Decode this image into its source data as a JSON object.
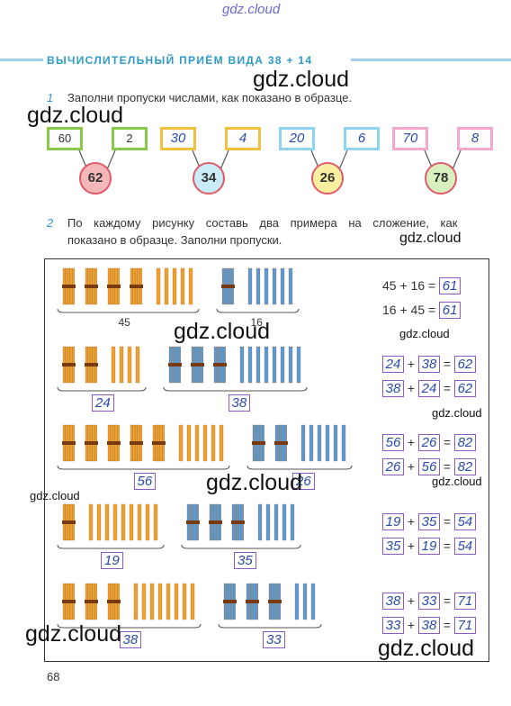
{
  "watermark": {
    "site": "gdz.cloud"
  },
  "header": {
    "title": "ВЫЧИСЛИТЕЛЬНЫЙ ПРИЁМ ВИДА 38 + 14"
  },
  "task1": {
    "number": "1",
    "text": "Заполни пропуски числами, как показано в образце.",
    "items": [
      {
        "left": "60",
        "right": "2",
        "sum": "62",
        "left_color": "#8ac84a",
        "right_color": "#8ac84a",
        "circle_color": "#f4b8b8"
      },
      {
        "left": "30",
        "right": "4",
        "sum": "34",
        "left_color": "#f0c040",
        "right_color": "#f0c040",
        "circle_color": "#c8ecf8"
      },
      {
        "left": "20",
        "right": "6",
        "sum": "26",
        "left_color": "#8fd4f0",
        "right_color": "#8fd4f0",
        "circle_color": "#f8f0a0"
      },
      {
        "left": "70",
        "right": "8",
        "sum": "78",
        "left_color": "#f4a8cc",
        "right_color": "#f4a8cc",
        "circle_color": "#d8f0c0"
      }
    ]
  },
  "task2": {
    "number": "2",
    "text_line1": "По каждому рисунку составь два примера на сложение, как",
    "text_line2": "показано в образце. Заполни пропуски.",
    "rows": [
      {
        "a": "45",
        "b": "16",
        "sum": "61",
        "eq1_a": "45",
        "eq1_b": "16",
        "eq2_a": "16",
        "eq2_b": "45",
        "filled": false
      },
      {
        "a": "24",
        "b": "38",
        "sum": "62",
        "eq1_a": "24",
        "eq1_b": "38",
        "eq2_a": "38",
        "eq2_b": "24",
        "filled": true
      },
      {
        "a": "56",
        "b": "26",
        "sum": "82",
        "eq1_a": "56",
        "eq1_b": "26",
        "eq2_a": "26",
        "eq2_b": "56",
        "filled": true
      },
      {
        "a": "19",
        "b": "35",
        "sum": "54",
        "eq1_a": "19",
        "eq1_b": "35",
        "eq2_a": "35",
        "eq2_b": "19",
        "filled": true
      },
      {
        "a": "38",
        "b": "33",
        "sum": "71",
        "eq1_a": "38",
        "eq1_b": "33",
        "eq2_a": "33",
        "eq2_b": "38",
        "filled": true
      }
    ],
    "plus": "+",
    "equals": "="
  },
  "colors": {
    "orange": "#f0a030",
    "blue": "#5a9ad8",
    "accent": "#2e9ac8"
  },
  "footer": {
    "page_number": "68"
  }
}
